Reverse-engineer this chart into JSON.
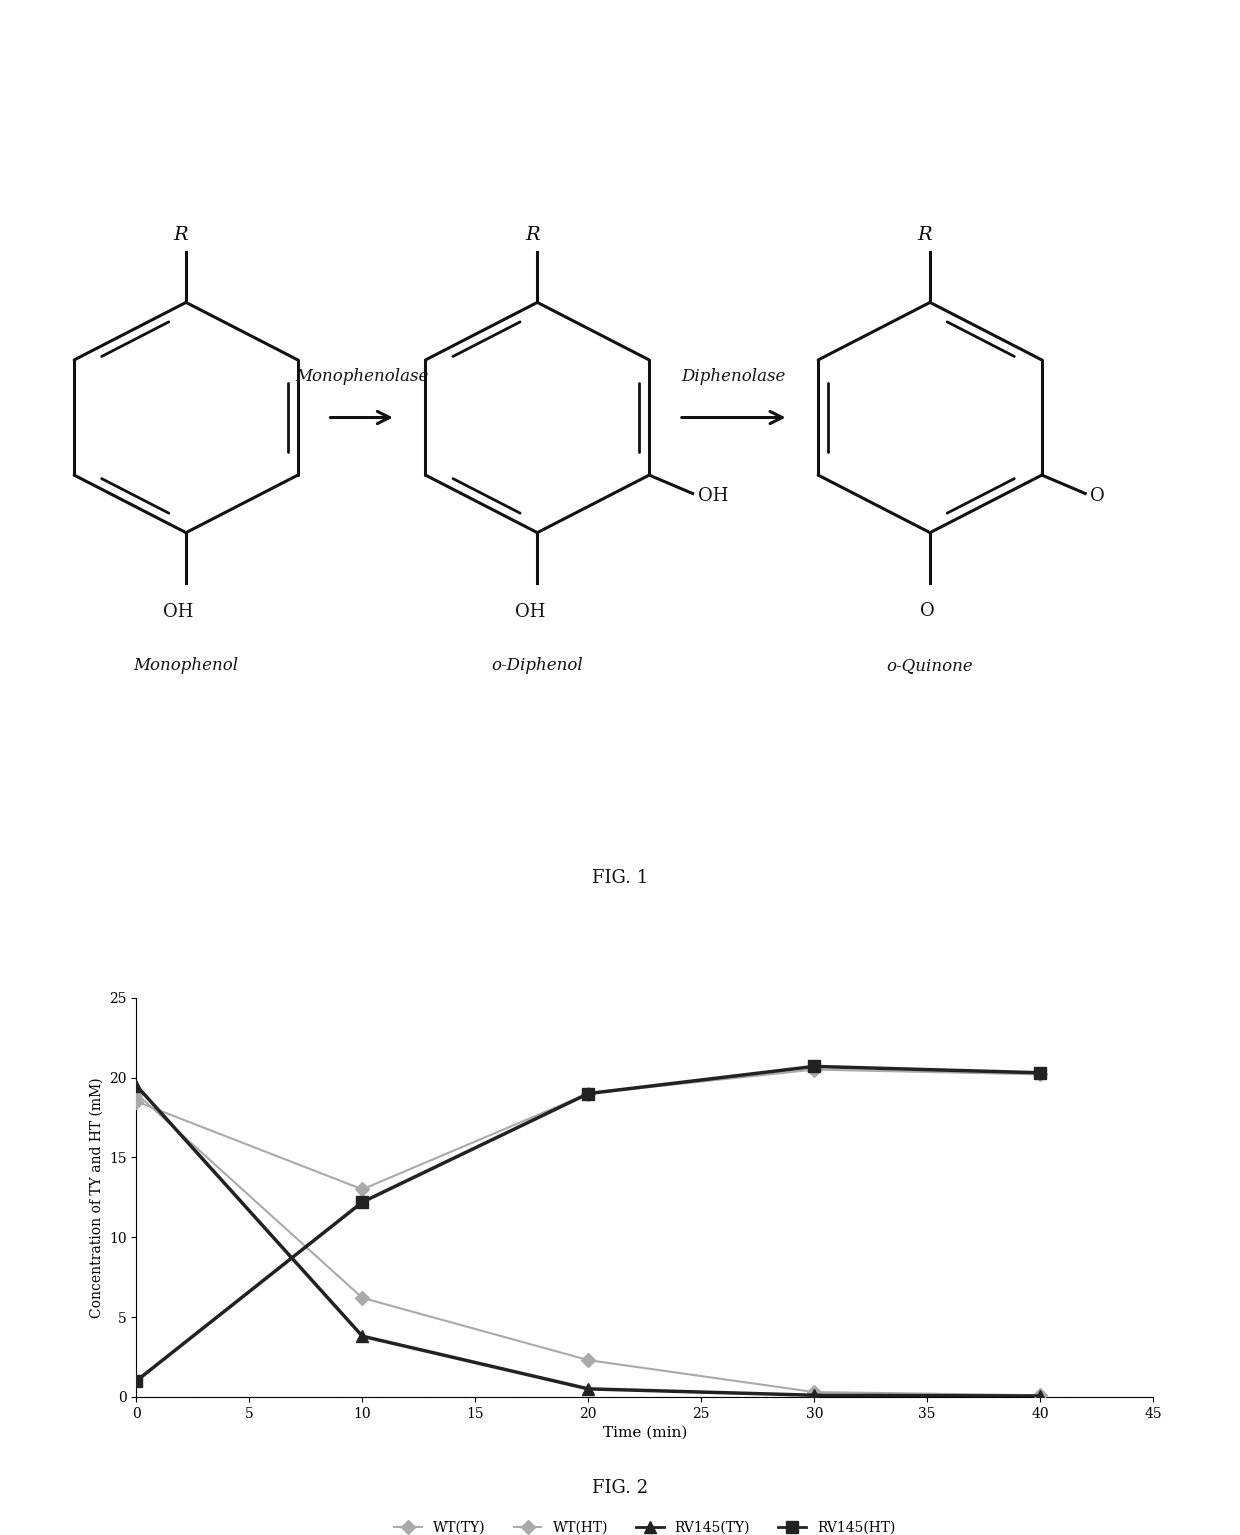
{
  "fig1_title": "FIG. 1",
  "fig2_title": "FIG. 2",
  "molecule_labels": [
    "Monophenol",
    "o-Diphenol",
    "o-Quinone"
  ],
  "arrow_labels": [
    "Monophenolase",
    "Diphenolase"
  ],
  "time_points": [
    0,
    10,
    20,
    30,
    40
  ],
  "WT_TY": [
    19.0,
    6.2,
    2.3,
    0.3,
    0.1
  ],
  "WT_HT": [
    18.5,
    13.0,
    19.0,
    20.5,
    20.2
  ],
  "RV145_TY": [
    19.5,
    3.8,
    0.5,
    0.1,
    0.05
  ],
  "RV145_HT": [
    1.0,
    12.2,
    19.0,
    20.7,
    20.3
  ],
  "xlabel": "Time (min)",
  "ylabel": "Concentration of TY and HT (mM)",
  "ylim": [
    0,
    25
  ],
  "xlim": [
    0,
    45
  ],
  "xticks": [
    0,
    5,
    10,
    15,
    20,
    25,
    30,
    35,
    40,
    45
  ],
  "yticks": [
    0,
    5,
    10,
    15,
    20,
    25
  ],
  "legend_labels": [
    "WT(TY)",
    "WT(HT)",
    "RV145(TY)",
    "RV145(HT)"
  ],
  "line_color_light": "#aaaaaa",
  "line_color_dark": "#222222",
  "background_color": "#ffffff"
}
